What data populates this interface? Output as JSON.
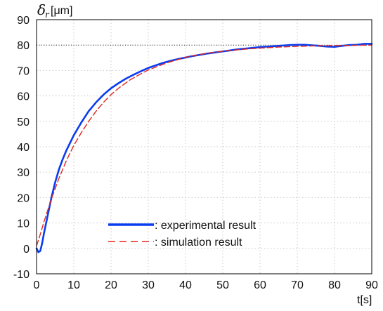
{
  "chart_data": {
    "type": "line",
    "ylabel_symbol": "δ",
    "ylabel_subscript": "r",
    "ylabel_unit": "[μm]",
    "xlabel": "t[s]",
    "xlim": [
      0,
      90
    ],
    "ylim": [
      -10,
      90
    ],
    "xticks": [
      0,
      10,
      20,
      30,
      40,
      50,
      60,
      70,
      80,
      90
    ],
    "yticks": [
      -10,
      0,
      10,
      20,
      30,
      40,
      50,
      60,
      70,
      80,
      90
    ],
    "grid": true,
    "reference_line_y": 80,
    "legend_placement": "bottom-center",
    "series": [
      {
        "name": ": experimental result",
        "color": "#0a3cf0",
        "style": "solid",
        "x": [
          0,
          0.5,
          1,
          1.5,
          2,
          3,
          4,
          5,
          6,
          7,
          8,
          10,
          12,
          14,
          16,
          18,
          20,
          22,
          24,
          26,
          28,
          30,
          32,
          34,
          36,
          38,
          40,
          42,
          44,
          46,
          48,
          50,
          52,
          54,
          56,
          58,
          60,
          62,
          64,
          66,
          68,
          70,
          72,
          74,
          76,
          78,
          80,
          82,
          84,
          86,
          88,
          90
        ],
        "y": [
          0,
          -1.5,
          -1,
          2,
          6,
          13,
          20,
          26,
          31,
          35,
          38.5,
          44.5,
          49.5,
          54,
          57.5,
          60.5,
          63,
          65,
          66.8,
          68.3,
          69.7,
          71,
          72,
          73,
          73.8,
          74.5,
          75.1,
          75.7,
          76.2,
          76.7,
          77.1,
          77.5,
          77.9,
          78.3,
          78.6,
          78.9,
          79.2,
          79.4,
          79.6,
          79.8,
          80,
          80.1,
          80.1,
          79.9,
          79.7,
          79.4,
          79.3,
          79.7,
          80,
          80.1,
          80.5,
          80.5
        ]
      },
      {
        "name": ": simulation result",
        "color": "#e0281e",
        "style": "dashed",
        "x": [
          0,
          1,
          2,
          3,
          4,
          5,
          6,
          8,
          10,
          12,
          14,
          16,
          18,
          20,
          22,
          25,
          28,
          30,
          35,
          40,
          45,
          50,
          55,
          60,
          65,
          70,
          75,
          80,
          85,
          90
        ],
        "y": [
          1,
          5.5,
          10.5,
          15,
          19.5,
          23.5,
          27.5,
          34.5,
          40.5,
          45.5,
          50,
          54,
          57.5,
          60.5,
          63,
          66.2,
          68.7,
          70.2,
          73,
          75.2,
          76.6,
          77.6,
          78.3,
          78.8,
          79.2,
          79.5,
          79.7,
          79.8,
          79.9,
          80
        ]
      }
    ]
  }
}
